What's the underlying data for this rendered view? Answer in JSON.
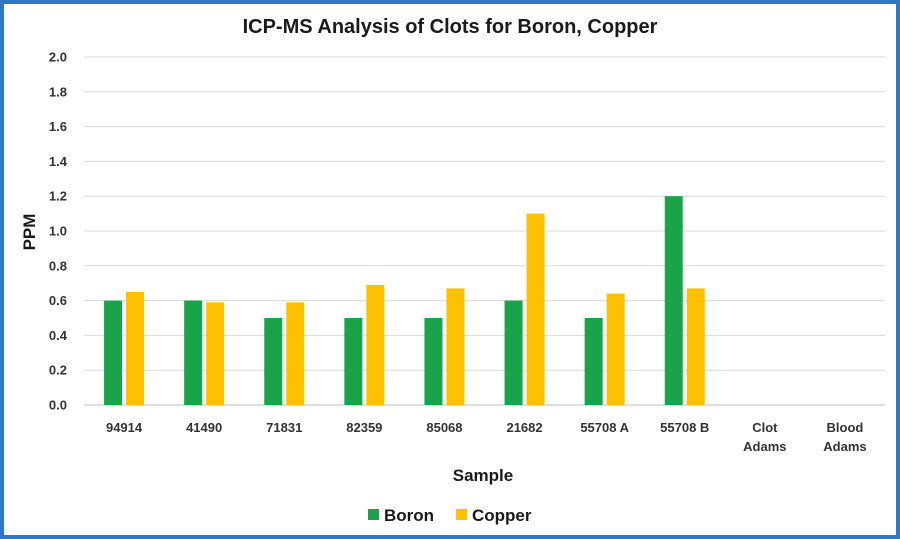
{
  "chart_data": {
    "type": "bar",
    "title": "ICP-MS Analysis of Clots for Boron, Copper",
    "xlabel": "Sample",
    "ylabel": "PPM",
    "ylim": [
      0,
      2.0
    ],
    "y_ticks": [
      "0.0",
      "0.2",
      "0.4",
      "0.6",
      "0.8",
      "1.0",
      "1.2",
      "1.4",
      "1.6",
      "1.8",
      "2.0"
    ],
    "grid": true,
    "legend_position": "bottom",
    "categories": [
      [
        "94914"
      ],
      [
        "41490"
      ],
      [
        "71831"
      ],
      [
        "82359"
      ],
      [
        "85068"
      ],
      [
        "21682"
      ],
      [
        "55708 A"
      ],
      [
        "55708 B"
      ],
      [
        "Clot",
        "Adams"
      ],
      [
        "Blood",
        "Adams"
      ]
    ],
    "series": [
      {
        "name": "Boron",
        "color": "#1aa34a",
        "values": [
          0.6,
          0.6,
          0.5,
          0.5,
          0.5,
          0.6,
          0.5,
          1.2,
          null,
          null
        ]
      },
      {
        "name": "Copper",
        "color": "#ffc000",
        "values": [
          0.65,
          0.59,
          0.59,
          0.69,
          0.67,
          1.1,
          0.64,
          0.67,
          null,
          null
        ]
      }
    ]
  }
}
